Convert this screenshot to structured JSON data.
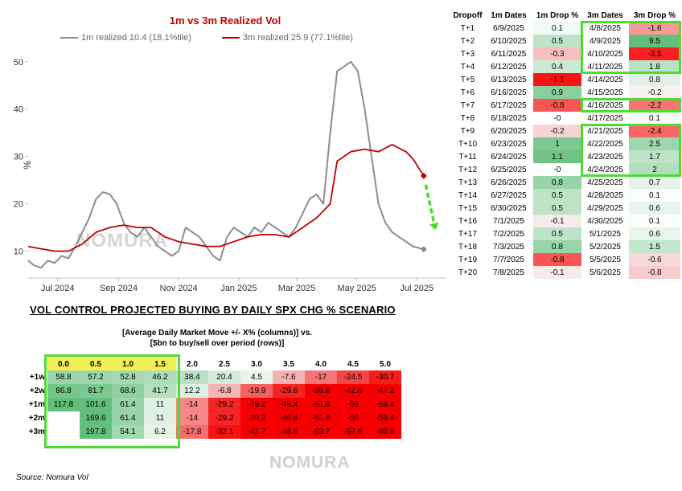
{
  "line_chart": {
    "title": "1m vs 3m Realized Vol",
    "watermark": "NOMURA",
    "colors": {
      "series_1m": "#8c8c8c",
      "series_3m": "#c00000",
      "title": "#c00000",
      "arrow": "#44dd22",
      "axis": "#bfbfbf"
    },
    "legend": {
      "series_1m_label": "1m realized 10.4 (18.1%tile)",
      "series_3m_label": "3m realized 25.9 (77.1%tile)"
    }
  },
  "chart_data": [
    {
      "type": "line",
      "title": "1m vs 3m Realized Vol",
      "ylabel": "%",
      "xlabel": "",
      "ylim": [
        5,
        52
      ],
      "yticks": [
        10,
        20,
        30,
        40,
        50
      ],
      "x_ticks": [
        "Jul 2024",
        "Sep 2024",
        "Nov 2024",
        "Jan 2025",
        "Mar 2025",
        "May 2025",
        "Jul 2025"
      ],
      "x_tick_dates": [
        "2024-07-01",
        "2024-09-01",
        "2024-11-01",
        "2025-01-01",
        "2025-03-01",
        "2025-05-01",
        "2025-07-01"
      ],
      "grid": false,
      "legend_position": "top",
      "series": [
        {
          "name": "1m realized 10.4 (18.1%tile)",
          "color": "#8c8c8c",
          "points": [
            [
              "2024-06-01",
              8
            ],
            [
              "2024-06-07",
              7
            ],
            [
              "2024-06-14",
              6.5
            ],
            [
              "2024-06-21",
              8
            ],
            [
              "2024-06-28",
              7.5
            ],
            [
              "2024-07-05",
              9
            ],
            [
              "2024-07-12",
              8.5
            ],
            [
              "2024-07-19",
              11
            ],
            [
              "2024-07-26",
              14
            ],
            [
              "2024-08-02",
              17
            ],
            [
              "2024-08-09",
              21
            ],
            [
              "2024-08-16",
              22.5
            ],
            [
              "2024-08-23",
              22
            ],
            [
              "2024-08-30",
              20
            ],
            [
              "2024-09-06",
              16
            ],
            [
              "2024-09-13",
              14
            ],
            [
              "2024-09-20",
              13
            ],
            [
              "2024-09-27",
              15
            ],
            [
              "2024-10-04",
              13
            ],
            [
              "2024-10-11",
              11
            ],
            [
              "2024-10-18",
              10
            ],
            [
              "2024-10-25",
              9
            ],
            [
              "2024-11-01",
              10
            ],
            [
              "2024-11-08",
              15
            ],
            [
              "2024-11-15",
              14
            ],
            [
              "2024-11-22",
              13
            ],
            [
              "2024-11-29",
              11
            ],
            [
              "2024-12-06",
              9
            ],
            [
              "2024-12-13",
              8
            ],
            [
              "2024-12-20",
              13
            ],
            [
              "2024-12-27",
              15
            ],
            [
              "2025-01-03",
              14
            ],
            [
              "2025-01-10",
              13
            ],
            [
              "2025-01-17",
              15
            ],
            [
              "2025-01-24",
              14
            ],
            [
              "2025-01-31",
              16
            ],
            [
              "2025-02-07",
              15
            ],
            [
              "2025-02-14",
              14
            ],
            [
              "2025-02-21",
              13
            ],
            [
              "2025-02-28",
              15
            ],
            [
              "2025-03-07",
              18
            ],
            [
              "2025-03-14",
              21
            ],
            [
              "2025-03-21",
              22
            ],
            [
              "2025-03-28",
              20
            ],
            [
              "2025-04-04",
              35
            ],
            [
              "2025-04-11",
              48
            ],
            [
              "2025-04-18",
              49
            ],
            [
              "2025-04-25",
              50
            ],
            [
              "2025-05-02",
              48
            ],
            [
              "2025-05-09",
              40
            ],
            [
              "2025-05-16",
              30
            ],
            [
              "2025-05-23",
              20
            ],
            [
              "2025-05-30",
              16
            ],
            [
              "2025-06-06",
              14
            ],
            [
              "2025-06-13",
              13
            ],
            [
              "2025-06-20",
              12
            ],
            [
              "2025-06-27",
              11
            ],
            [
              "2025-07-08",
              10.4
            ]
          ]
        },
        {
          "name": "3m realized 25.9 (77.1%tile)",
          "color": "#c00000",
          "points": [
            [
              "2024-06-01",
              11
            ],
            [
              "2024-06-14",
              10.5
            ],
            [
              "2024-06-28",
              10
            ],
            [
              "2024-07-12",
              10
            ],
            [
              "2024-07-26",
              11.5
            ],
            [
              "2024-08-09",
              14
            ],
            [
              "2024-08-23",
              15
            ],
            [
              "2024-09-06",
              15.5
            ],
            [
              "2024-09-20",
              15
            ],
            [
              "2024-10-04",
              15
            ],
            [
              "2024-10-18",
              13
            ],
            [
              "2024-11-01",
              12
            ],
            [
              "2024-11-15",
              11.5
            ],
            [
              "2024-11-29",
              11
            ],
            [
              "2024-12-13",
              11
            ],
            [
              "2024-12-27",
              12
            ],
            [
              "2025-01-10",
              13
            ],
            [
              "2025-01-24",
              13.5
            ],
            [
              "2025-02-07",
              13.5
            ],
            [
              "2025-02-21",
              13
            ],
            [
              "2025-03-07",
              15
            ],
            [
              "2025-03-21",
              17
            ],
            [
              "2025-04-04",
              20
            ],
            [
              "2025-04-11",
              29
            ],
            [
              "2025-04-25",
              31
            ],
            [
              "2025-05-09",
              31.5
            ],
            [
              "2025-05-23",
              31
            ],
            [
              "2025-06-06",
              32.5
            ],
            [
              "2025-06-20",
              31
            ],
            [
              "2025-06-27",
              29.5
            ],
            [
              "2025-07-08",
              25.9
            ]
          ]
        }
      ],
      "markers": [
        {
          "series": "1m realized 10.4 (18.1%tile)",
          "x": "2025-07-08",
          "y": 10.4,
          "shape": "diamond"
        },
        {
          "series": "3m realized 25.9 (77.1%tile)",
          "x": "2025-07-08",
          "y": 25.9,
          "shape": "diamond"
        }
      ],
      "annotations": [
        {
          "type": "dashed-arrow",
          "from": [
            "2025-07-10",
            24
          ],
          "to": [
            "2025-07-20",
            14.5
          ],
          "color": "#44dd22"
        }
      ]
    },
    {
      "type": "table",
      "columns": [
        "Dropoff",
        "1m Dates",
        "1m Drop %",
        "3m Dates",
        "3m Drop %"
      ],
      "rows": [
        [
          "T+1",
          "6/9/2025",
          0.1,
          "4/8/2025",
          -1.6
        ],
        [
          "T+2",
          "6/10/2025",
          0.5,
          "4/9/2025",
          9.5
        ],
        [
          "T+3",
          "6/11/2025",
          -0.3,
          "4/10/2025",
          -3.5
        ],
        [
          "T+4",
          "6/12/2025",
          0.4,
          "4/11/2025",
          1.8
        ],
        [
          "T+5",
          "6/13/2025",
          -1.1,
          "4/14/2025",
          0.8
        ],
        [
          "T+6",
          "6/16/2025",
          0.9,
          "4/15/2025",
          -0.2
        ],
        [
          "T+7",
          "6/17/2025",
          -0.8,
          "4/16/2025",
          -2.2
        ],
        [
          "T+8",
          "6/18/2025",
          "-0",
          "4/17/2025",
          0.1
        ],
        [
          "T+9",
          "6/20/2025",
          -0.2,
          "4/21/2025",
          -2.4
        ],
        [
          "T+10",
          "6/23/2025",
          1,
          "4/22/2025",
          2.5
        ],
        [
          "T+11",
          "6/24/2025",
          1.1,
          "4/23/2025",
          1.7
        ],
        [
          "T+12",
          "6/25/2025",
          "-0",
          "4/24/2025",
          2
        ],
        [
          "T+13",
          "6/26/2025",
          0.8,
          "4/25/2025",
          0.7
        ],
        [
          "T+14",
          "6/27/2025",
          0.5,
          "4/28/2025",
          0.1
        ],
        [
          "T+15",
          "6/30/2025",
          0.5,
          "4/29/2025",
          0.6
        ],
        [
          "T+16",
          "7/1/2025",
          -0.1,
          "4/30/2025",
          0.1
        ],
        [
          "T+17",
          "7/2/2025",
          0.5,
          "5/1/2025",
          0.6
        ],
        [
          "T+18",
          "7/3/2025",
          0.8,
          "5/2/2025",
          1.5
        ],
        [
          "T+19",
          "7/7/2025",
          -0.8,
          "5/5/2025",
          -0.6
        ],
        [
          "T+20",
          "7/8/2025",
          -0.1,
          "5/6/2025",
          -0.8
        ]
      ],
      "highlight_boxes": [
        {
          "column": "3m Dates to 3m Drop %",
          "rows": [
            "T+1",
            "T+4"
          ]
        },
        {
          "column": "3m Dates to 3m Drop %",
          "rows": [
            "T+7",
            "T+7"
          ]
        },
        {
          "column": "3m Dates to 3m Drop %",
          "rows": [
            "T+9",
            "T+12"
          ]
        }
      ]
    },
    {
      "type": "heatmap",
      "title": "VOL CONTROL PROJECTED BUYING BY DAILY SPX CHG % SCENARIO",
      "subtitle": "[Average Daily Market Move +/- X% (columns)] vs. [$bn to buy/sell over period (rows)]",
      "columns": [
        "0.0",
        "0.5",
        "1.0",
        "1.5",
        "2.0",
        "2.5",
        "3.0",
        "3.5",
        "4.0",
        "4.5",
        "5.0"
      ],
      "rows": [
        "+1w",
        "+2w",
        "+1m",
        "+2m",
        "+3m"
      ],
      "values": [
        [
          58.8,
          57.2,
          52.8,
          46.2,
          38.4,
          20.4,
          4.5,
          -7.6,
          -17,
          -24.5,
          -30.7
        ],
        [
          86.8,
          81.7,
          68.6,
          41.7,
          12.2,
          -6.8,
          -19.9,
          -29.6,
          -36.8,
          -42.6,
          -47.2
        ],
        [
          117.8,
          101.6,
          61.4,
          11,
          -14,
          -29.2,
          -39.2,
          -46.4,
          -51.8,
          -56,
          -59.4
        ],
        [
          null,
          169.6,
          61.4,
          11,
          -14,
          -29.2,
          -39.2,
          -46.4,
          -51.8,
          -56,
          -59.4
        ],
        [
          null,
          197.8,
          54.1,
          6.2,
          -17.8,
          -32.1,
          -41.7,
          -48.6,
          -53.7,
          -57.6,
          -60.8
        ]
      ],
      "highlighted_columns": [
        "0.0",
        "0.5",
        "1.0",
        "1.5"
      ]
    }
  ],
  "matrix": {
    "section_title": "VOL CONTROL PROJECTED BUYING BY DAILY SPX CHG % SCENARIO",
    "subtitle_line1": "[Average Daily Market Move +/- X% (columns)] vs.",
    "subtitle_line2": "[$bn to buy/sell over period (rows)]"
  },
  "footer": {
    "watermark": "NOMURA",
    "source": "Source: Nomura Vol"
  }
}
